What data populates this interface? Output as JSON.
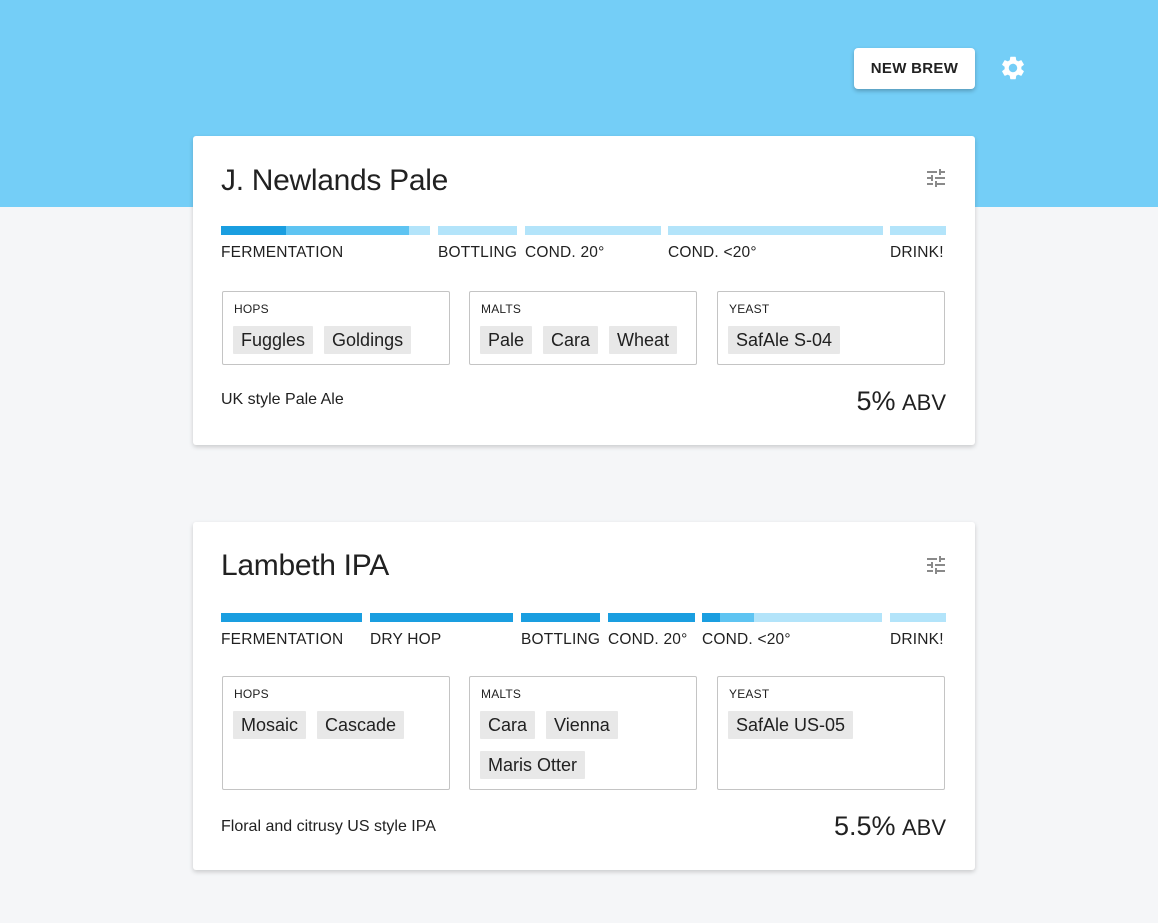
{
  "header": {
    "new_brew_label": "NEW BREW",
    "settings_icon": "gear-icon",
    "band_color": "#74cef7"
  },
  "colors": {
    "stage_complete": "#1a9ee0",
    "stage_progress": "#5ec4f2",
    "stage_pending": "#b3e4fa"
  },
  "brews": [
    {
      "name": "J. Newlands Pale",
      "edit_icon": "tune-icon",
      "stages": [
        {
          "label": "FERMENTATION",
          "progress": 0.9,
          "complete_portion": 0.31
        },
        {
          "label": "BOTTLING",
          "progress": 0
        },
        {
          "label": "COND. 20°",
          "progress": 0
        },
        {
          "label": "COND. <20°",
          "progress": 0
        },
        {
          "label": "DRINK!",
          "progress": 0
        }
      ],
      "hops_label": "HOPS",
      "hops": [
        "Fuggles",
        "Goldings"
      ],
      "malts_label": "MALTS",
      "malts": [
        "Pale",
        "Cara",
        "Wheat"
      ],
      "yeast_label": "YEAST",
      "yeast": [
        "SafAle S-04"
      ],
      "description": "UK style Pale Ale",
      "abv_value": "5%",
      "abv_unit": "ABV"
    },
    {
      "name": "Lambeth IPA",
      "edit_icon": "tune-icon",
      "stages": [
        {
          "label": "FERMENTATION",
          "progress": 1
        },
        {
          "label": "DRY HOP",
          "progress": 1
        },
        {
          "label": "BOTTLING",
          "progress": 1
        },
        {
          "label": "COND. 20°",
          "progress": 1
        },
        {
          "label": "COND. <20°",
          "progress": 0.29,
          "complete_portion": 0.1
        },
        {
          "label": "DRINK!",
          "progress": 0
        }
      ],
      "hops_label": "HOPS",
      "hops": [
        "Mosaic",
        "Cascade"
      ],
      "malts_label": "MALTS",
      "malts": [
        "Cara",
        "Vienna",
        "Maris Otter"
      ],
      "yeast_label": "YEAST",
      "yeast": [
        "SafAle US-05"
      ],
      "description": "Floral and citrusy US style IPA",
      "abv_value": "5.5%",
      "abv_unit": "ABV"
    }
  ]
}
